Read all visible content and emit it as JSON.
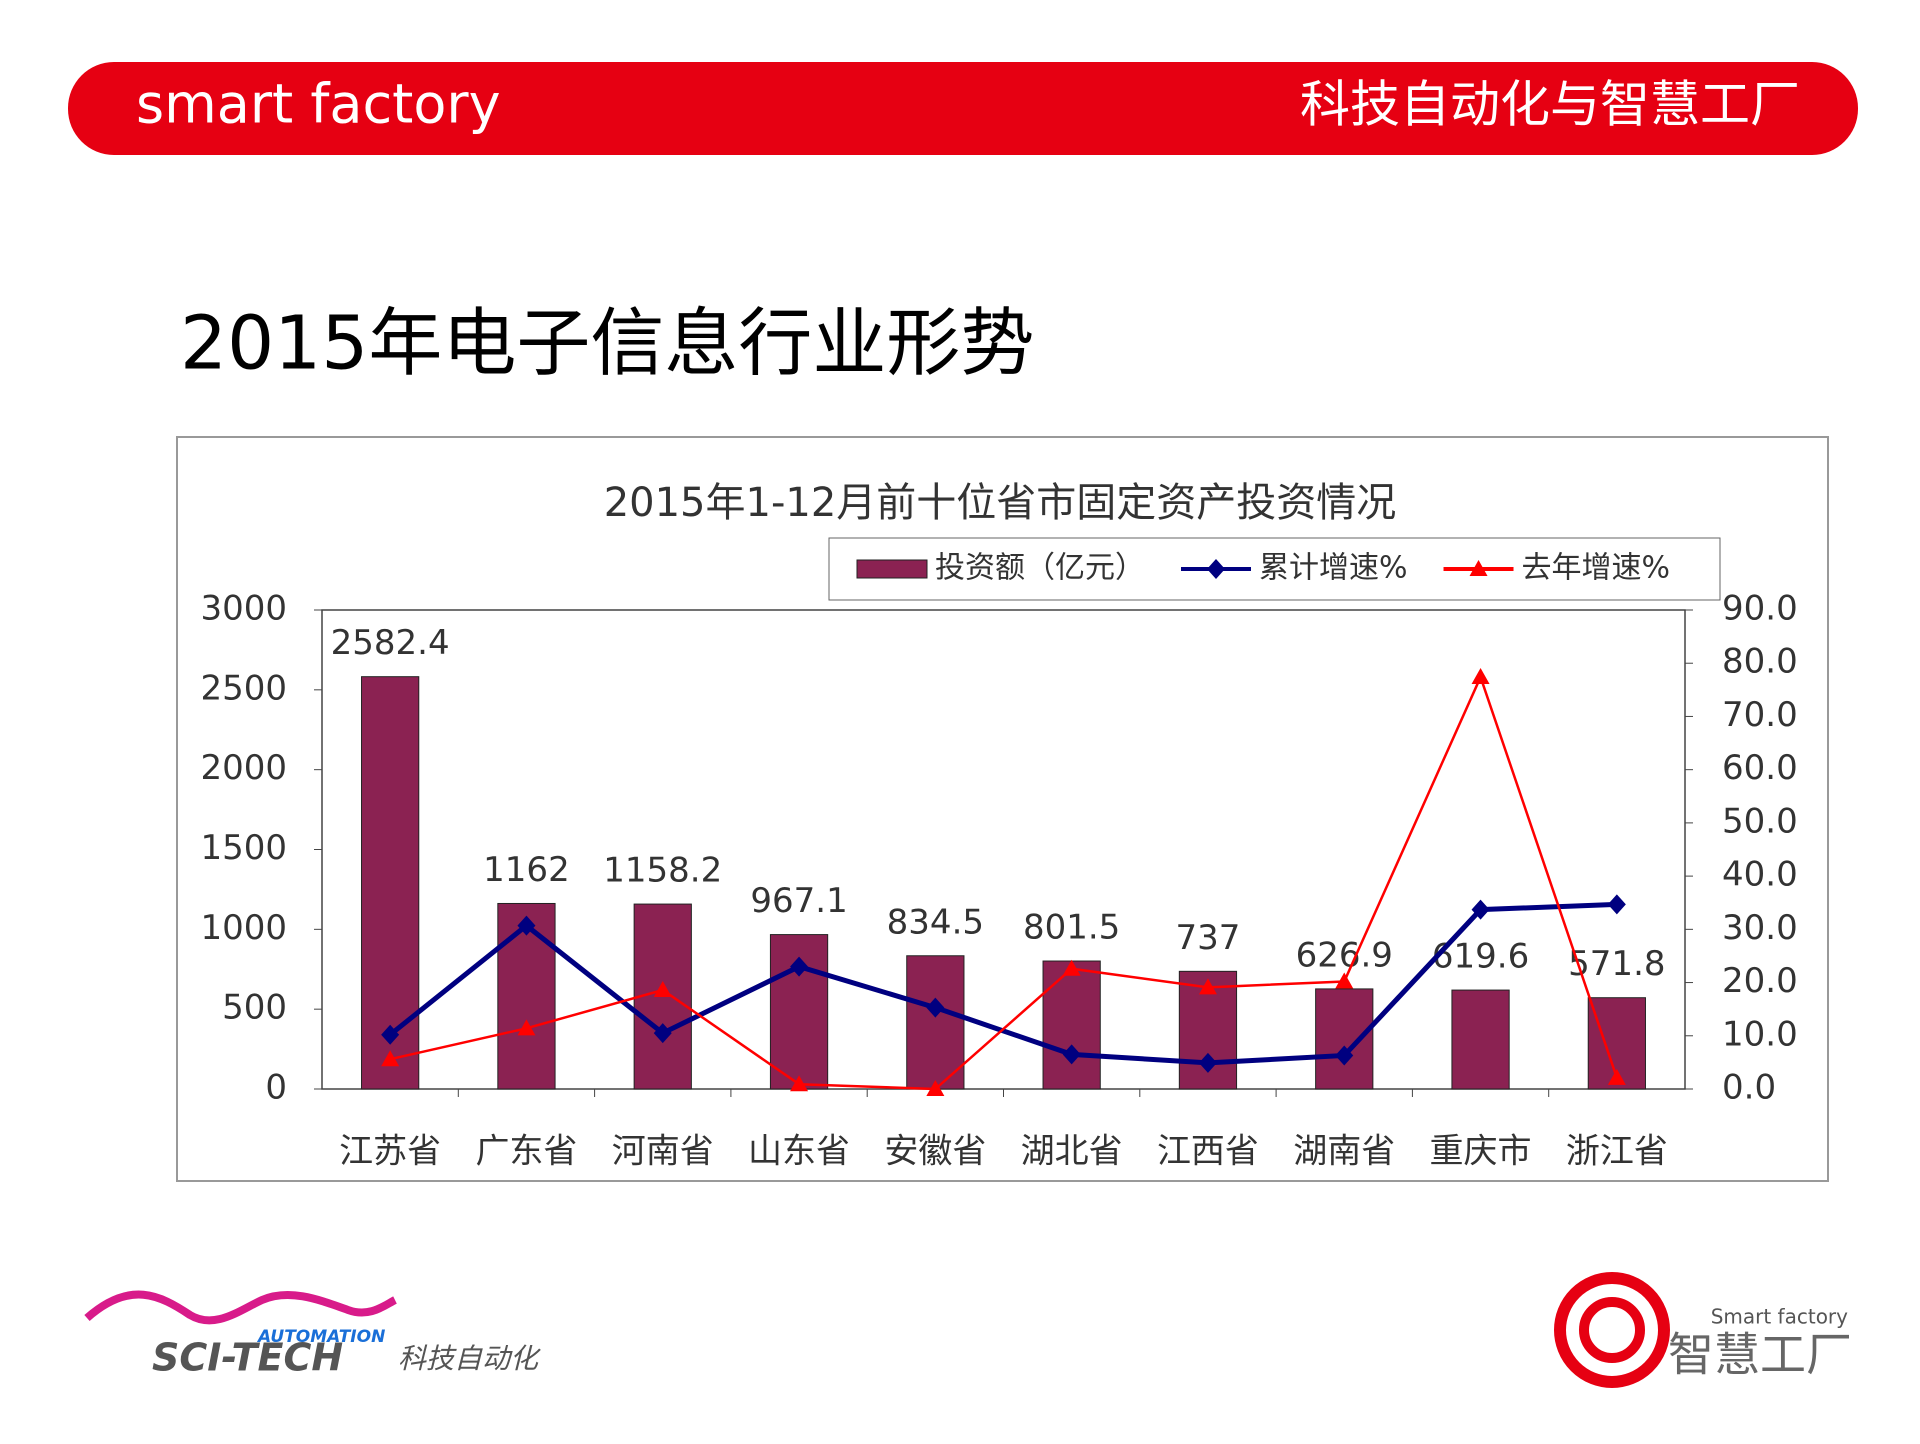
{
  "header": {
    "left": "smart factory",
    "right": "科技自动化与智慧工厂"
  },
  "slide_title": "2015年电子信息行业形势",
  "chart_data": {
    "type": "bar",
    "title": "2015年1-12月前十位省市固定资产投资情况",
    "categories": [
      "江苏省",
      "广东省",
      "河南省",
      "山东省",
      "安徽省",
      "湖北省",
      "江西省",
      "湖南省",
      "重庆市",
      "浙江省"
    ],
    "series": [
      {
        "name": "投资额（亿元）",
        "type": "bar",
        "color": "#8b2252",
        "values": [
          2582.4,
          1162,
          1158.2,
          967.1,
          834.5,
          801.5,
          737,
          626.9,
          619.6,
          571.8
        ]
      },
      {
        "name": "累计增速%",
        "type": "line",
        "marker": "diamond",
        "axis": "y2",
        "color": "#000080",
        "values": [
          10.2,
          30.7,
          10.5,
          23,
          15.3,
          6.5,
          4.9,
          6.3,
          33.7,
          34.7
        ]
      },
      {
        "name": "去年增速%",
        "type": "line",
        "marker": "triangle",
        "axis": "y2",
        "color": "#ff0000",
        "values": [
          5.6,
          11.4,
          18.6,
          0.9,
          0,
          22.6,
          19.1,
          20.2,
          77.4,
          2.1
        ]
      }
    ],
    "ylim": [
      0,
      3000
    ],
    "yticks": [
      0,
      500,
      1000,
      1500,
      2000,
      2500,
      3000
    ],
    "y2lim": [
      0,
      90
    ],
    "y2ticks": [
      {
        "value": 0,
        "label": "0.0"
      },
      {
        "value": 10,
        "label": "10.0"
      },
      {
        "value": 20,
        "label": "20.0"
      },
      {
        "value": 30,
        "label": "30.0"
      },
      {
        "value": 40,
        "label": "40.0"
      },
      {
        "value": 50,
        "label": "50.0"
      },
      {
        "value": 60,
        "label": "60.0"
      },
      {
        "value": 70,
        "label": "70.0"
      },
      {
        "value": 80,
        "label": "80.0"
      },
      {
        "value": 90,
        "label": "90.0"
      }
    ],
    "grid": false,
    "legend": "top-right"
  },
  "footer": {
    "left_small": "AUTOMATION",
    "left_main": "SCI-TECH",
    "left_cn": "科技自动化",
    "right_en": "Smart factory",
    "right_cn": "智慧工厂"
  }
}
